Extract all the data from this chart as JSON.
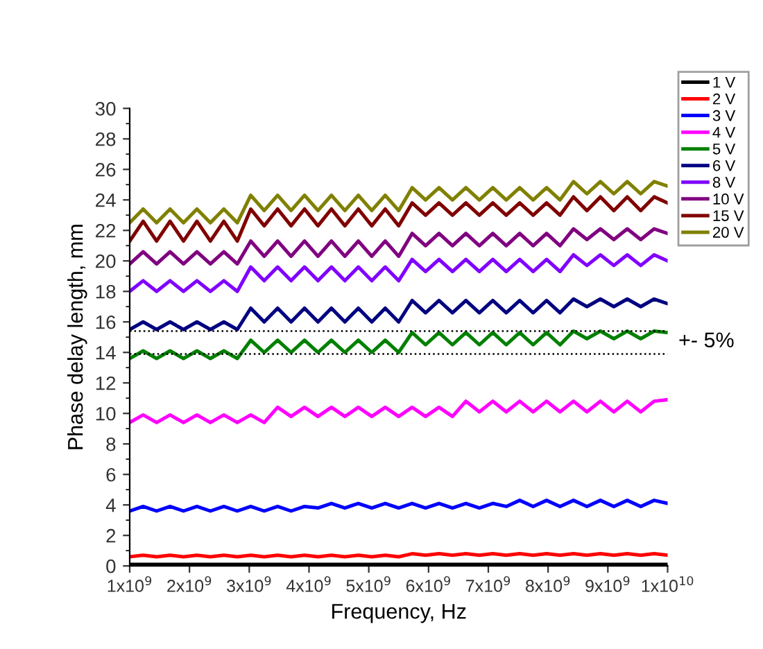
{
  "chart_data": {
    "type": "line",
    "xlabel": "Frequency, Hz",
    "ylabel": "Phase delay length, mm",
    "x": [
      1000000000.0,
      1225000000.0,
      1450000000.0,
      1675000000.0,
      1900000000.0,
      2125000000.0,
      2350000000.0,
      2575000000.0,
      2800000000.0,
      3025000000.0,
      3250000000.0,
      3475000000.0,
      3700000000.0,
      3925000000.0,
      4150000000.0,
      4375000000.0,
      4600000000.0,
      4825000000.0,
      5050000000.0,
      5275000000.0,
      5500000000.0,
      5725000000.0,
      5950000000.0,
      6175000000.0,
      6400000000.0,
      6625000000.0,
      6850000000.0,
      7075000000.0,
      7300000000.0,
      7525000000.0,
      7750000000.0,
      7975000000.0,
      8200000000.0,
      8425000000.0,
      8650000000.0,
      8875000000.0,
      9100000000.0,
      9325000000.0,
      9550000000.0,
      9775000000.0,
      10000000000.0
    ],
    "xlim": [
      1000000000.0,
      10000000000.0
    ],
    "xticks": [
      {
        "value": 1000000000.0,
        "label": "1x10$^{9}$"
      },
      {
        "value": 2000000000.0,
        "label": "2x10$^{9}$"
      },
      {
        "value": 3000000000.0,
        "label": "3x10$^{9}$"
      },
      {
        "value": 4000000000.0,
        "label": "4x10$^{9}$"
      },
      {
        "value": 5000000000.0,
        "label": "5x10$^{9}$"
      },
      {
        "value": 6000000000.0,
        "label": "6x10$^{9}$"
      },
      {
        "value": 7000000000.0,
        "label": "7x10$^{9}$"
      },
      {
        "value": 8000000000.0,
        "label": "8x10$^{9}$"
      },
      {
        "value": 9000000000.0,
        "label": "9x10$^{9}$"
      },
      {
        "value": 10000000000.0,
        "label": "1x10$^{10}$"
      }
    ],
    "ylim": [
      0,
      30
    ],
    "yticks": [
      0,
      2,
      4,
      6,
      8,
      10,
      12,
      14,
      16,
      18,
      20,
      22,
      24,
      26,
      28,
      30
    ],
    "grid": false,
    "legend": "top right",
    "marker": "none",
    "line_style": "solid",
    "annotations": [
      "+- 5%"
    ],
    "ref_lines": [
      {
        "axis": "y",
        "value": 15.4,
        "color": "#000000",
        "line_style": "dotted"
      },
      {
        "axis": "y",
        "value": 13.9,
        "color": "#000000",
        "line_style": "dotted"
      }
    ],
    "series": [
      {
        "name": "1 V",
        "color": "#000000",
        "values": [
          0.1,
          0.1,
          0.1,
          0.1,
          0.1,
          0.1,
          0.1,
          0.1,
          0.1,
          0.1,
          0.1,
          0.1,
          0.1,
          0.1,
          0.1,
          0.1,
          0.1,
          0.1,
          0.1,
          0.1,
          0.1,
          0.1,
          0.1,
          0.1,
          0.1,
          0.1,
          0.1,
          0.1,
          0.1,
          0.1,
          0.1,
          0.1,
          0.1,
          0.1,
          0.1,
          0.1,
          0.1,
          0.1,
          0.1,
          0.1,
          0.1
        ]
      },
      {
        "name": "2 V",
        "color": "#ff0000",
        "values": [
          0.6,
          0.7,
          0.6,
          0.7,
          0.6,
          0.7,
          0.6,
          0.7,
          0.6,
          0.7,
          0.6,
          0.7,
          0.6,
          0.7,
          0.6,
          0.7,
          0.6,
          0.7,
          0.6,
          0.7,
          0.6,
          0.8,
          0.7,
          0.8,
          0.7,
          0.8,
          0.7,
          0.8,
          0.7,
          0.8,
          0.7,
          0.8,
          0.7,
          0.8,
          0.7,
          0.8,
          0.7,
          0.8,
          0.7,
          0.8,
          0.7
        ]
      },
      {
        "name": "3 V",
        "color": "#0000ff",
        "values": [
          3.6,
          3.9,
          3.6,
          3.9,
          3.6,
          3.9,
          3.6,
          3.9,
          3.6,
          3.9,
          3.6,
          3.9,
          3.6,
          3.9,
          3.8,
          4.1,
          3.8,
          4.1,
          3.8,
          4.1,
          3.8,
          4.1,
          3.8,
          4.1,
          3.8,
          4.1,
          3.8,
          4.1,
          3.9,
          4.3,
          3.9,
          4.3,
          3.9,
          4.3,
          3.9,
          4.3,
          3.9,
          4.3,
          3.9,
          4.3,
          4.1
        ]
      },
      {
        "name": "4 V",
        "color": "#ff00ff",
        "values": [
          9.4,
          9.9,
          9.4,
          9.9,
          9.4,
          9.9,
          9.4,
          9.9,
          9.4,
          9.9,
          9.4,
          10.4,
          9.8,
          10.4,
          9.8,
          10.4,
          9.8,
          10.4,
          9.8,
          10.4,
          9.8,
          10.4,
          9.8,
          10.4,
          9.8,
          10.8,
          10.1,
          10.8,
          10.1,
          10.8,
          10.1,
          10.8,
          10.1,
          10.8,
          10.1,
          10.8,
          10.1,
          10.8,
          10.1,
          10.8,
          10.9
        ]
      },
      {
        "name": "5 V",
        "color": "#008000",
        "values": [
          13.6,
          14.1,
          13.6,
          14.1,
          13.6,
          14.1,
          13.6,
          14.1,
          13.6,
          14.8,
          14.0,
          14.8,
          14.0,
          14.8,
          14.0,
          14.8,
          14.0,
          14.8,
          14.0,
          14.8,
          14.0,
          15.3,
          14.5,
          15.3,
          14.5,
          15.3,
          14.5,
          15.3,
          14.5,
          15.3,
          14.5,
          15.3,
          14.5,
          15.4,
          14.9,
          15.4,
          14.9,
          15.4,
          14.9,
          15.4,
          15.3
        ]
      },
      {
        "name": "6 V",
        "color": "#000080",
        "values": [
          15.5,
          16.0,
          15.5,
          16.0,
          15.5,
          16.0,
          15.5,
          16.0,
          15.5,
          16.9,
          16.0,
          16.9,
          16.0,
          16.9,
          16.0,
          16.9,
          16.0,
          16.9,
          16.0,
          16.9,
          16.0,
          17.4,
          16.6,
          17.4,
          16.6,
          17.4,
          16.6,
          17.4,
          16.6,
          17.4,
          16.6,
          17.4,
          16.6,
          17.5,
          17.0,
          17.5,
          17.0,
          17.5,
          17.0,
          17.5,
          17.2
        ]
      },
      {
        "name": "8 V",
        "color": "#8000ff",
        "values": [
          18.0,
          18.7,
          18.0,
          18.7,
          18.0,
          18.7,
          18.0,
          18.7,
          18.0,
          19.6,
          18.7,
          19.6,
          18.7,
          19.6,
          18.7,
          19.6,
          18.7,
          19.6,
          18.7,
          19.6,
          18.7,
          20.1,
          19.3,
          20.1,
          19.3,
          20.1,
          19.3,
          20.1,
          19.3,
          20.1,
          19.3,
          20.1,
          19.3,
          20.4,
          19.7,
          20.4,
          19.7,
          20.4,
          19.7,
          20.4,
          20.0
        ]
      },
      {
        "name": "10 V",
        "color": "#800080",
        "values": [
          19.8,
          20.6,
          19.8,
          20.6,
          19.8,
          20.6,
          19.8,
          20.6,
          19.8,
          21.3,
          20.3,
          21.3,
          20.3,
          21.3,
          20.3,
          21.3,
          20.3,
          21.3,
          20.3,
          21.3,
          20.3,
          21.8,
          21.0,
          21.8,
          21.0,
          21.8,
          21.0,
          21.8,
          21.0,
          21.8,
          21.0,
          21.8,
          21.0,
          22.1,
          21.4,
          22.1,
          21.4,
          22.1,
          21.4,
          22.1,
          21.8
        ]
      },
      {
        "name": "15 V",
        "color": "#800000",
        "values": [
          21.3,
          22.6,
          21.3,
          22.6,
          21.3,
          22.6,
          21.3,
          22.6,
          21.3,
          23.4,
          22.3,
          23.4,
          22.3,
          23.4,
          22.3,
          23.4,
          22.3,
          23.4,
          22.3,
          23.4,
          22.3,
          23.8,
          23.0,
          23.8,
          23.0,
          23.8,
          23.0,
          23.8,
          23.0,
          23.8,
          23.0,
          23.8,
          23.0,
          24.2,
          23.3,
          24.2,
          23.3,
          24.2,
          23.3,
          24.2,
          23.8
        ]
      },
      {
        "name": "20 V",
        "color": "#808000",
        "values": [
          22.5,
          23.4,
          22.5,
          23.4,
          22.5,
          23.4,
          22.5,
          23.4,
          22.5,
          24.3,
          23.3,
          24.3,
          23.3,
          24.3,
          23.3,
          24.3,
          23.3,
          24.3,
          23.3,
          24.3,
          23.3,
          24.8,
          24.0,
          24.8,
          24.0,
          24.8,
          24.0,
          24.8,
          24.0,
          24.8,
          24.0,
          24.8,
          24.0,
          25.2,
          24.4,
          25.2,
          24.4,
          25.2,
          24.4,
          25.2,
          24.9
        ]
      }
    ]
  }
}
